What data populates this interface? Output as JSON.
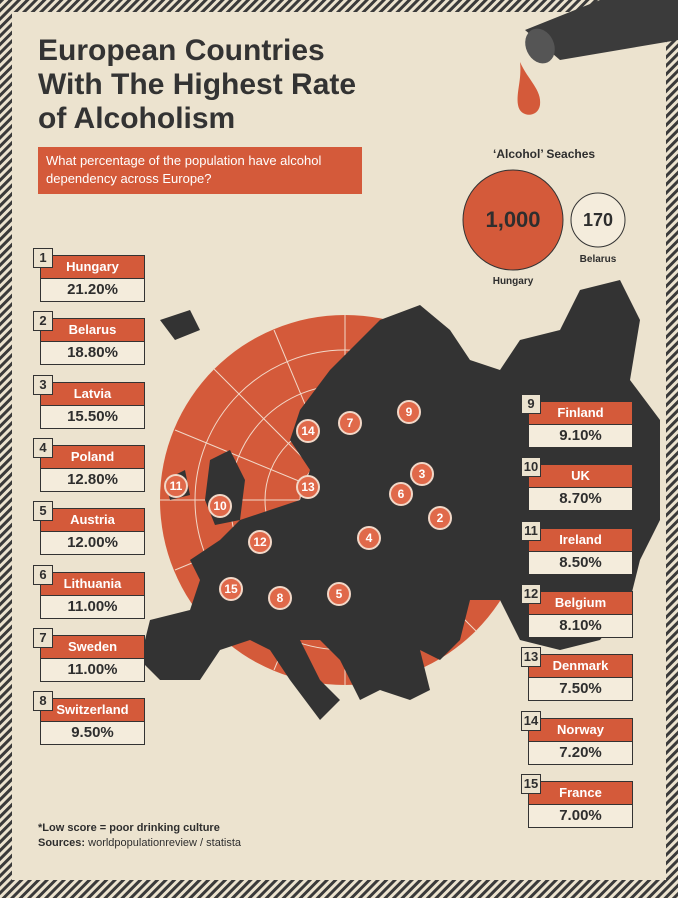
{
  "header": {
    "title": "European Countries With The Highest Rate of Alcoholism",
    "subtitle": "What percentage of the population have alcohol dependency across Europe?"
  },
  "searches": {
    "title": "‘Alcohol’ Seaches",
    "items": [
      {
        "value": "1,000",
        "label": "Hungary"
      },
      {
        "value": "170",
        "label": "Belarus"
      }
    ]
  },
  "rankings": [
    {
      "rank": "1",
      "country": "Hungary",
      "value": "21.20%"
    },
    {
      "rank": "2",
      "country": "Belarus",
      "value": "18.80%"
    },
    {
      "rank": "3",
      "country": "Latvia",
      "value": "15.50%"
    },
    {
      "rank": "4",
      "country": "Poland",
      "value": "12.80%"
    },
    {
      "rank": "5",
      "country": "Austria",
      "value": "12.00%"
    },
    {
      "rank": "6",
      "country": "Lithuania",
      "value": "11.00%"
    },
    {
      "rank": "7",
      "country": "Sweden",
      "value": "11.00%"
    },
    {
      "rank": "8",
      "country": "Switzerland",
      "value": "9.50%"
    },
    {
      "rank": "9",
      "country": "Finland",
      "value": "9.10%"
    },
    {
      "rank": "10",
      "country": "UK",
      "value": "8.70%"
    },
    {
      "rank": "11",
      "country": "Ireland",
      "value": "8.50%"
    },
    {
      "rank": "12",
      "country": "Belgium",
      "value": "8.10%"
    },
    {
      "rank": "13",
      "country": "Denmark",
      "value": "7.50%"
    },
    {
      "rank": "14",
      "country": "Norway",
      "value": "7.20%"
    },
    {
      "rank": "15",
      "country": "France",
      "value": "7.00%"
    }
  ],
  "footer": {
    "note": "*Low score = poor drinking culture",
    "sources_label": "Sources:",
    "sources": "worldpopulationreview / statista"
  }
}
